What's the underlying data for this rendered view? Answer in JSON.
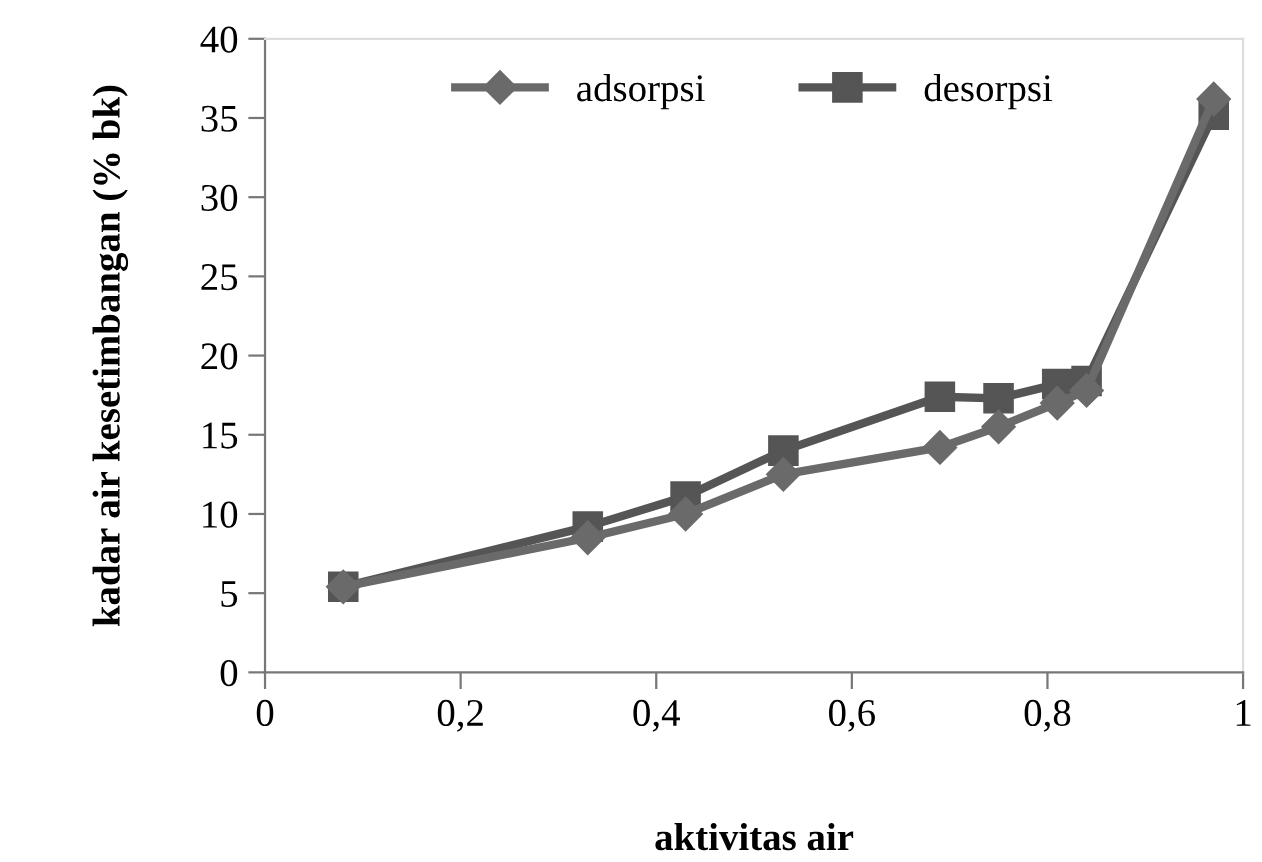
{
  "chart_data": {
    "type": "line",
    "xlabel": "aktivitas air",
    "ylabel": "kadar air kesetimbangan (% bk)",
    "x": [
      0.08,
      0.33,
      0.43,
      0.53,
      0.69,
      0.75,
      0.81,
      0.84,
      0.97
    ],
    "series": [
      {
        "name": "adsorpsi",
        "color": "#6a6a6a",
        "marker": "diamond",
        "values": [
          5.4,
          8.5,
          10.0,
          12.5,
          14.2,
          15.5,
          17.0,
          17.8,
          36.2
        ]
      },
      {
        "name": "desorpsi",
        "color": "#555555",
        "marker": "square",
        "values": [
          5.4,
          9.2,
          11.1,
          14.0,
          17.4,
          17.3,
          18.2,
          18.4,
          35.2
        ]
      }
    ],
    "xlim": [
      0,
      1
    ],
    "ylim": [
      0,
      40
    ],
    "xticks": [
      0,
      {
        "value": 0.2,
        "label": "0,2"
      },
      {
        "value": 0.4,
        "label": "0,4"
      },
      {
        "value": 0.6,
        "label": "0,6"
      },
      {
        "value": 0.8,
        "label": "0,8"
      },
      1
    ],
    "yticks": [
      0,
      5,
      10,
      15,
      20,
      25,
      30,
      35,
      40
    ],
    "legend": "top",
    "grid": false,
    "line_style": "solid"
  }
}
